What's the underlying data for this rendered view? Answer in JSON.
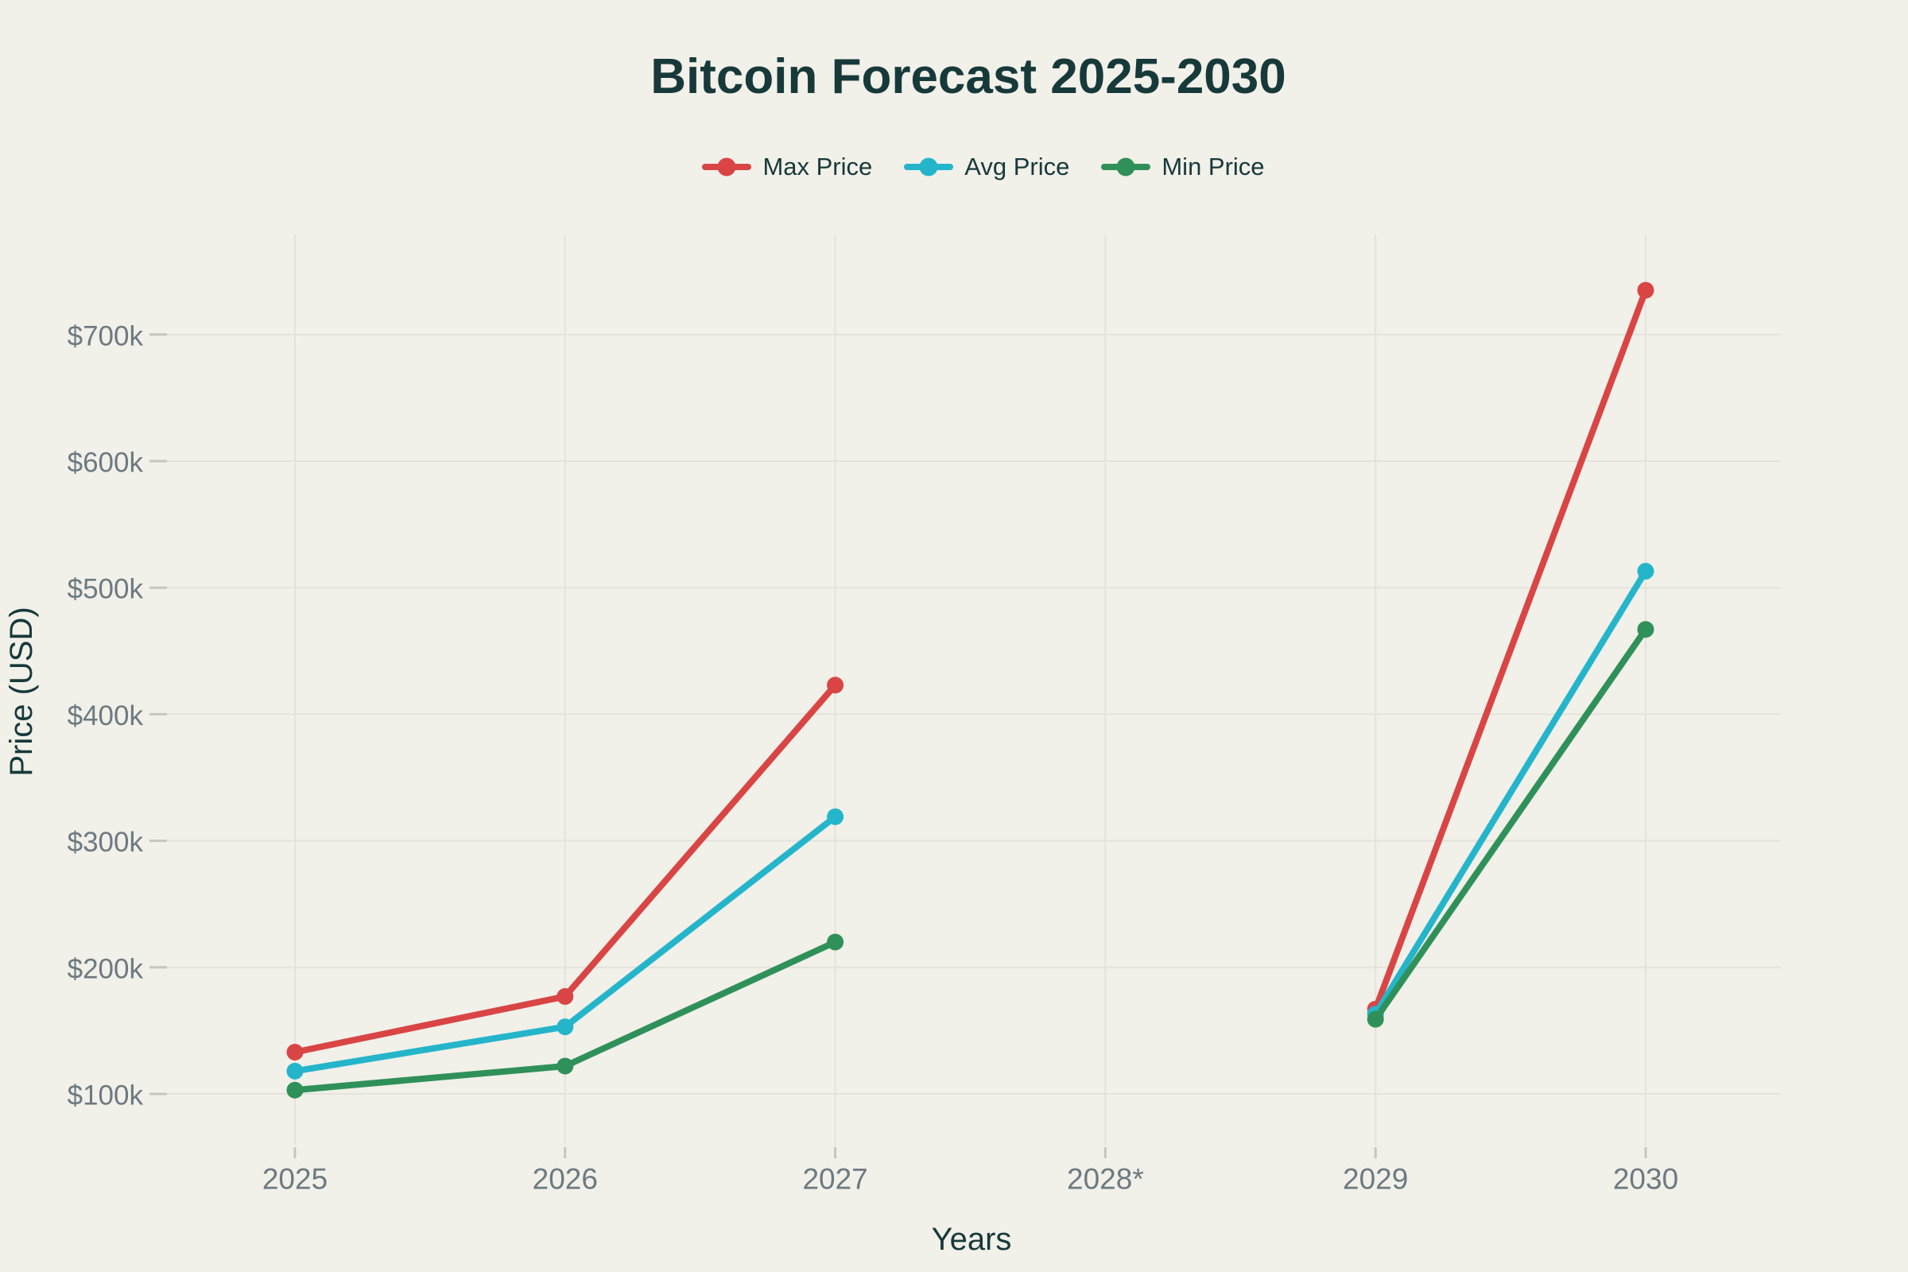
{
  "title": "Bitcoin Forecast 2025-2030",
  "legend": [
    {
      "label": "Max Price",
      "color": "#d94545"
    },
    {
      "label": "Avg Price",
      "color": "#25b5cb"
    },
    {
      "label": "Min Price",
      "color": "#2f9159"
    }
  ],
  "colors": {
    "background": "#f1f0e9",
    "title_text": "#17393a",
    "tick_text": "#6c7a80",
    "gridline": "#e4e3db",
    "tickmark": "#c6c6be"
  },
  "chart_data": {
    "type": "line",
    "mode": "lines+markers",
    "title": "Bitcoin Forecast 2025-2030",
    "xlabel": "Years",
    "ylabel": "Price (USD)",
    "categories": [
      "2025",
      "2026",
      "2027",
      "2028*",
      "2029",
      "2030"
    ],
    "series": [
      {
        "name": "Max Price",
        "color": "#d94545",
        "values": [
          133000,
          177000,
          423000,
          null,
          167000,
          735000
        ]
      },
      {
        "name": "Avg Price",
        "color": "#25b5cb",
        "values": [
          118000,
          153000,
          319000,
          null,
          163000,
          513000
        ]
      },
      {
        "name": "Min Price",
        "color": "#2f9159",
        "values": [
          103000,
          122000,
          220000,
          null,
          159000,
          467000
        ]
      }
    ],
    "missing_data_category": "2028*",
    "y_tick_labels": [
      "$100k",
      "$200k",
      "$300k",
      "$400k",
      "$500k",
      "$600k",
      "$700k"
    ],
    "y_tick_values": [
      100000,
      200000,
      300000,
      400000,
      500000,
      600000,
      700000
    ],
    "ylim": [
      60000,
      780000
    ],
    "grid": true,
    "legend_position": "top-center"
  }
}
